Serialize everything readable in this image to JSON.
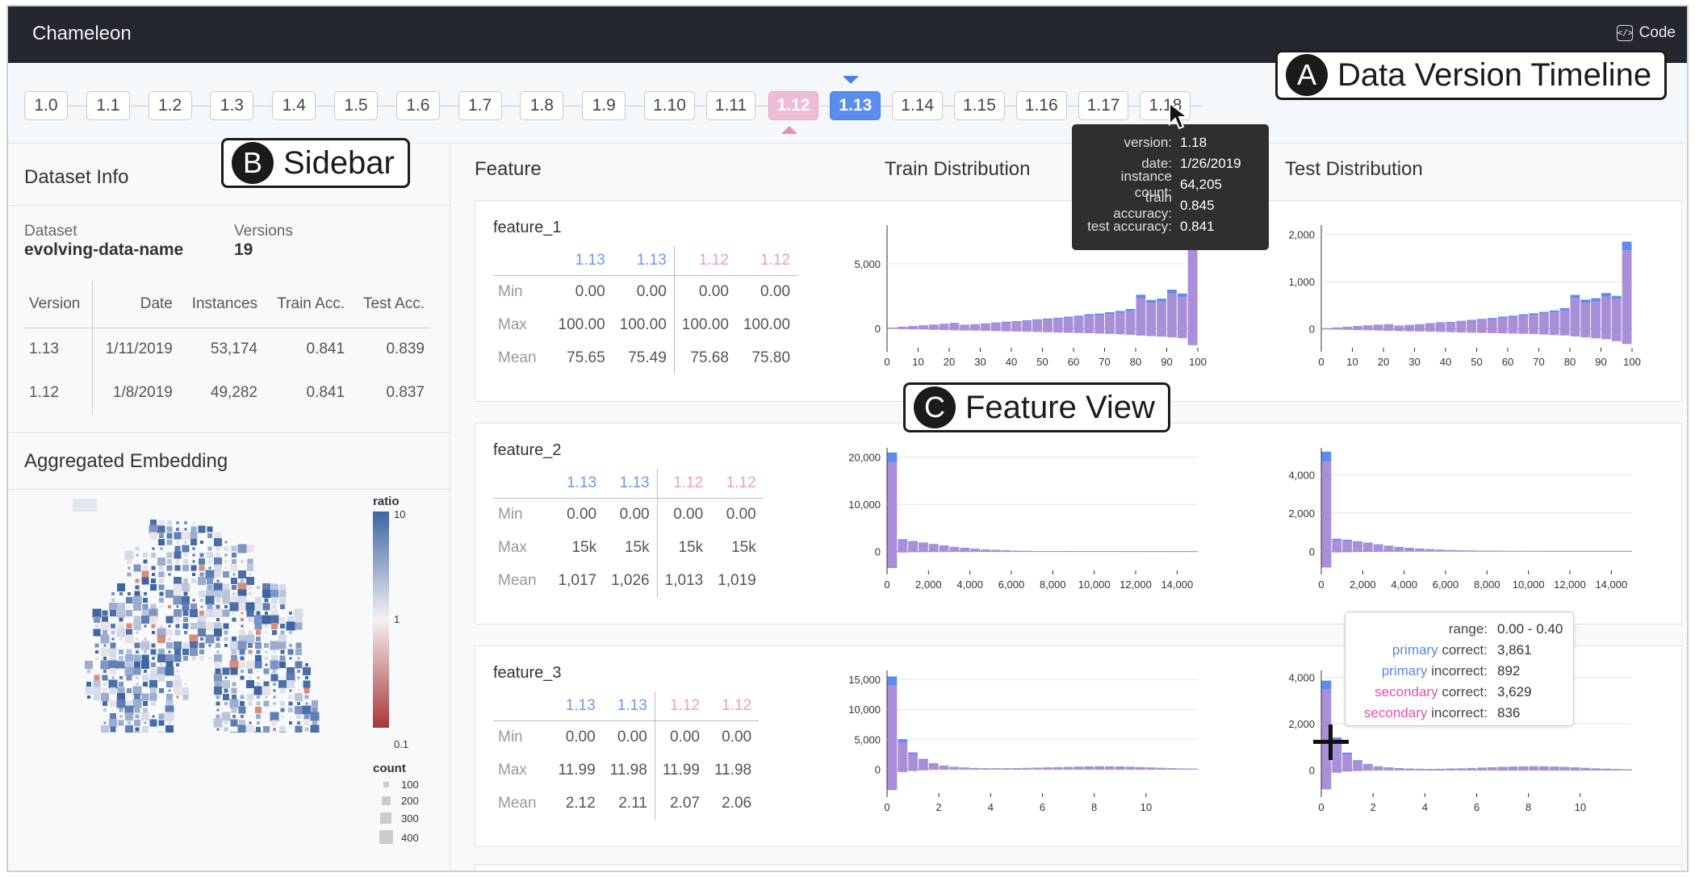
{
  "app": {
    "title": "Chameleon",
    "code_label": "Code",
    "code_icon": "code-icon"
  },
  "timeline": {
    "versions": [
      "1.0",
      "1.1",
      "1.2",
      "1.3",
      "1.4",
      "1.5",
      "1.6",
      "1.7",
      "1.8",
      "1.9",
      "1.10",
      "1.11",
      "1.12",
      "1.13",
      "1.14",
      "1.15",
      "1.16",
      "1.17",
      "1.18"
    ],
    "primary": "1.13",
    "secondary": "1.12",
    "hovered": "1.18"
  },
  "callouts": {
    "a": {
      "letter": "A",
      "text": "Data Version Timeline"
    },
    "b": {
      "letter": "B",
      "text": "Sidebar"
    },
    "c": {
      "letter": "C",
      "text": "Feature View"
    }
  },
  "sidebar": {
    "dataset_info_title": "Dataset Info",
    "dataset_label": "Dataset",
    "dataset_name": "evolving-data-name",
    "versions_label": "Versions",
    "versions_count": "19",
    "table": {
      "headers": [
        "Version",
        "Date",
        "Instances",
        "Train Acc.",
        "Test Acc."
      ],
      "rows": [
        {
          "version": "1.13",
          "date": "1/11/2019",
          "instances": "53,174",
          "train": "0.841",
          "test": "0.839",
          "role": "primary"
        },
        {
          "version": "1.12",
          "date": "1/8/2019",
          "instances": "49,282",
          "train": "0.841",
          "test": "0.837",
          "role": "secondary"
        }
      ]
    },
    "embedding_title": "Aggregated Embedding",
    "legend": {
      "ratio_title": "ratio",
      "ratio_ticks": [
        "10",
        "1",
        "0.1"
      ],
      "count_title": "count",
      "count_ticks": [
        "100",
        "200",
        "300",
        "400"
      ],
      "color_high": "#4a6fa8",
      "color_low": "#a8363a"
    }
  },
  "main": {
    "col_feature": "Feature",
    "col_train": "Train Distribution",
    "col_test": "Test Distribution",
    "stat_labels": [
      "Min",
      "Max",
      "Mean"
    ],
    "primary_color": "#5b8def",
    "overlap_color": "#a98ed8",
    "features": [
      {
        "name": "feature_1",
        "versions": [
          "1.13",
          "1.13",
          "1.12",
          "1.12"
        ],
        "min": [
          "0.00",
          "0.00",
          "0.00",
          "0.00"
        ],
        "max": [
          "100.00",
          "100.00",
          "100.00",
          "100.00"
        ],
        "mean": [
          "75.65",
          "75.49",
          "75.68",
          "75.80"
        ]
      },
      {
        "name": "feature_2",
        "versions": [
          "1.13",
          "1.13",
          "1.12",
          "1.12"
        ],
        "min": [
          "0.00",
          "0.00",
          "0.00",
          "0.00"
        ],
        "max": [
          "15k",
          "15k",
          "15k",
          "15k"
        ],
        "mean": [
          "1,017",
          "1,026",
          "1,013",
          "1,019"
        ]
      },
      {
        "name": "feature_3",
        "versions": [
          "1.13",
          "1.13",
          "1.12",
          "1.12"
        ],
        "min": [
          "0.00",
          "0.00",
          "0.00",
          "0.00"
        ],
        "max": [
          "11.99",
          "11.98",
          "11.99",
          "11.98"
        ],
        "mean": [
          "2.12",
          "2.11",
          "2.07",
          "2.06"
        ]
      }
    ]
  },
  "version_tooltip": {
    "rows": [
      {
        "k": "version:",
        "v": "1.18"
      },
      {
        "k": "date:",
        "v": "1/26/2019"
      },
      {
        "k": "instance count:",
        "v": "64,205"
      },
      {
        "k": "train accuracy:",
        "v": "0.845"
      },
      {
        "k": "test accuracy:",
        "v": "0.841"
      }
    ]
  },
  "range_tooltip": {
    "range_label": "range:",
    "range_value": "0.00 - 0.40",
    "primary_word": "primary",
    "secondary_word": "secondary",
    "correct_suffix": " correct:",
    "incorrect_suffix": " incorrect:",
    "primary_correct": "3,861",
    "primary_incorrect": "892",
    "secondary_correct": "3,629",
    "secondary_incorrect": "836"
  },
  "chart_data": [
    {
      "type": "bar",
      "feature": "feature_1",
      "panel": "Train Distribution",
      "x": [
        0,
        3.33,
        6.67,
        10,
        13.33,
        16.67,
        20,
        23.33,
        26.67,
        30,
        33.33,
        36.67,
        40,
        43.33,
        46.67,
        50,
        53.33,
        56.67,
        60,
        63.33,
        66.67,
        70,
        73.33,
        76.67,
        80,
        83.33,
        86.67,
        90,
        93.33,
        96.67
      ],
      "series": [
        {
          "name": "1.13",
          "values": [
            60,
            120,
            180,
            240,
            300,
            350,
            420,
            280,
            330,
            380,
            460,
            520,
            560,
            620,
            700,
            760,
            820,
            900,
            980,
            1100,
            1150,
            1250,
            1350,
            1500,
            2600,
            2200,
            2300,
            3000,
            2700,
            7600
          ]
        },
        {
          "name": "1.12",
          "values": [
            -40,
            -60,
            -80,
            -90,
            -110,
            -130,
            -150,
            -160,
            -170,
            -190,
            -210,
            -230,
            -240,
            -260,
            -280,
            -300,
            -320,
            -340,
            -360,
            -380,
            -410,
            -430,
            -460,
            -500,
            -560,
            -600,
            -640,
            -700,
            -760,
            -1300
          ]
        }
      ],
      "xticks": [
        "0",
        "10",
        "20",
        "30",
        "40",
        "50",
        "60",
        "70",
        "80",
        "90",
        "100"
      ],
      "yticks": [
        "5,000",
        "0"
      ],
      "ylim": [
        -1500,
        8000
      ]
    },
    {
      "type": "bar",
      "feature": "feature_1",
      "panel": "Test Distribution",
      "x": [
        0,
        3.33,
        6.67,
        10,
        13.33,
        16.67,
        20,
        23.33,
        26.67,
        30,
        33.33,
        36.67,
        40,
        43.33,
        46.67,
        50,
        53.33,
        56.67,
        60,
        63.33,
        66.67,
        70,
        73.33,
        76.67,
        80,
        83.33,
        86.67,
        90,
        93.33,
        96.67
      ],
      "series": [
        {
          "name": "1.13",
          "values": [
            15,
            30,
            45,
            60,
            75,
            90,
            100,
            70,
            85,
            100,
            120,
            140,
            150,
            170,
            190,
            210,
            230,
            260,
            280,
            310,
            330,
            360,
            390,
            440,
            720,
            620,
            650,
            760,
            700,
            1850
          ]
        },
        {
          "name": "1.12",
          "values": [
            -10,
            -15,
            -20,
            -25,
            -30,
            -35,
            -40,
            -45,
            -50,
            -55,
            -60,
            -65,
            -70,
            -75,
            -80,
            -85,
            -90,
            -95,
            -100,
            -105,
            -110,
            -120,
            -130,
            -140,
            -160,
            -180,
            -200,
            -220,
            -260,
            -320
          ]
        }
      ],
      "xticks": [
        "0",
        "10",
        "20",
        "30",
        "40",
        "50",
        "60",
        "70",
        "80",
        "90",
        "100"
      ],
      "yticks": [
        "2,000",
        "1,000",
        "0"
      ],
      "ylim": [
        -400,
        2200
      ]
    },
    {
      "type": "bar",
      "feature": "feature_2",
      "panel": "Train Distribution",
      "x": [
        0,
        500,
        1000,
        1500,
        2000,
        2500,
        3000,
        3500,
        4000,
        4500,
        5000,
        5500,
        6000,
        6500,
        7000,
        7500,
        8000,
        8500,
        9000,
        9500,
        10000,
        10500,
        11000,
        11500,
        12000,
        12500,
        13000,
        13500,
        14000,
        14500
      ],
      "series": [
        {
          "name": "1.13",
          "values": [
            21000,
            2600,
            2200,
            1900,
            1600,
            1300,
            1000,
            800,
            600,
            450,
            350,
            250,
            180,
            140,
            100,
            80,
            60,
            50,
            40,
            30,
            25,
            20,
            15,
            10,
            10,
            5,
            5,
            5,
            5,
            5
          ]
        },
        {
          "name": "1.12",
          "values": [
            -3500,
            -200,
            -150,
            -120,
            -100,
            -80,
            -60,
            -50,
            -40,
            -30,
            -25,
            -20,
            -15,
            -10,
            -10,
            -8,
            -6,
            -5,
            -4,
            -3,
            -2,
            -2,
            -1,
            -1,
            -1,
            0,
            0,
            0,
            0,
            0
          ]
        }
      ],
      "xticks": [
        "0",
        "2,000",
        "4,000",
        "6,000",
        "8,000",
        "10,000",
        "12,000",
        "14,000"
      ],
      "yticks": [
        "20,000",
        "10,000",
        "0"
      ],
      "ylim": [
        -4000,
        22000
      ]
    },
    {
      "type": "bar",
      "feature": "feature_2",
      "panel": "Test Distribution",
      "x": [
        0,
        500,
        1000,
        1500,
        2000,
        2500,
        3000,
        3500,
        4000,
        4500,
        5000,
        5500,
        6000,
        6500,
        7000,
        7500,
        8000,
        8500,
        9000,
        9500,
        10000,
        10500,
        11000,
        11500,
        12000,
        12500,
        13000,
        13500,
        14000,
        14500
      ],
      "series": [
        {
          "name": "1.13",
          "values": [
            5200,
            650,
            600,
            520,
            450,
            360,
            290,
            230,
            180,
            140,
            110,
            85,
            65,
            50,
            40,
            30,
            25,
            20,
            15,
            12,
            10,
            8,
            6,
            5,
            4,
            3,
            3,
            2,
            2,
            2
          ]
        },
        {
          "name": "1.12",
          "values": [
            -850,
            -60,
            -50,
            -40,
            -35,
            -30,
            -25,
            -20,
            -15,
            -12,
            -10,
            -8,
            -6,
            -5,
            -4,
            -3,
            -2,
            -2,
            -1,
            -1,
            -1,
            0,
            0,
            0,
            0,
            0,
            0,
            0,
            0,
            0
          ]
        }
      ],
      "xticks": [
        "0",
        "2,000",
        "4,000",
        "6,000",
        "8,000",
        "10,000",
        "12,000",
        "14,000"
      ],
      "yticks": [
        "4,000",
        "2,000",
        "0"
      ],
      "ylim": [
        -1000,
        5400
      ]
    },
    {
      "type": "bar",
      "feature": "feature_3",
      "panel": "Train Distribution",
      "x": [
        0,
        0.4,
        0.8,
        1.2,
        1.6,
        2,
        2.4,
        2.8,
        3.2,
        3.6,
        4,
        4.4,
        4.8,
        5.2,
        5.6,
        6,
        6.4,
        6.8,
        7.2,
        7.6,
        8,
        8.4,
        8.8,
        9.2,
        9.6,
        10,
        10.4,
        10.8,
        11.2,
        11.6
      ],
      "series": [
        {
          "name": "1.13",
          "values": [
            15500,
            5000,
            2800,
            1700,
            1000,
            600,
            400,
            280,
            200,
            160,
            150,
            160,
            180,
            210,
            250,
            290,
            330,
            380,
            420,
            450,
            480,
            470,
            440,
            400,
            340,
            280,
            220,
            170,
            120,
            80
          ]
        },
        {
          "name": "1.12",
          "values": [
            -3500,
            -500,
            -300,
            -200,
            -120,
            -80,
            -50,
            -40,
            -30,
            -25,
            -25,
            -25,
            -30,
            -35,
            -40,
            -45,
            -50,
            -55,
            -60,
            -65,
            -70,
            -70,
            -65,
            -60,
            -55,
            -45,
            -35,
            -25,
            -20,
            -15
          ]
        }
      ],
      "xticks": [
        "0",
        "2",
        "4",
        "6",
        "8",
        "10"
      ],
      "yticks": [
        "15,000",
        "10,000",
        "5,000",
        "0"
      ],
      "ylim": [
        -4000,
        16500
      ]
    },
    {
      "type": "bar",
      "feature": "feature_3",
      "panel": "Test Distribution",
      "x": [
        0,
        0.4,
        0.8,
        1.2,
        1.6,
        2,
        2.4,
        2.8,
        3.2,
        3.6,
        4,
        4.4,
        4.8,
        5.2,
        5.6,
        6,
        6.4,
        6.8,
        7.2,
        7.6,
        8,
        8.4,
        8.8,
        9.2,
        9.6,
        10,
        10.4,
        10.8,
        11.2,
        11.6
      ],
      "series": [
        {
          "name": "1.13",
          "values": [
            3861,
            1400,
            750,
            420,
            260,
            160,
            110,
            80,
            60,
            50,
            45,
            50,
            60,
            70,
            85,
            100,
            115,
            130,
            145,
            155,
            160,
            155,
            145,
            130,
            110,
            90,
            70,
            55,
            40,
            30
          ]
        },
        {
          "name": "1.12",
          "values": [
            -836,
            -120,
            -70,
            -45,
            -30,
            -20,
            -15,
            -12,
            -10,
            -8,
            -8,
            -8,
            -10,
            -12,
            -14,
            -16,
            -18,
            -20,
            -22,
            -24,
            -25,
            -24,
            -22,
            -20,
            -18,
            -15,
            -12,
            -10,
            -8,
            -6
          ]
        }
      ],
      "xticks": [
        "0",
        "2",
        "4",
        "6",
        "8",
        "10"
      ],
      "yticks": [
        "4,000",
        "2,000",
        "0"
      ],
      "ylim": [
        -1000,
        4300
      ]
    }
  ]
}
